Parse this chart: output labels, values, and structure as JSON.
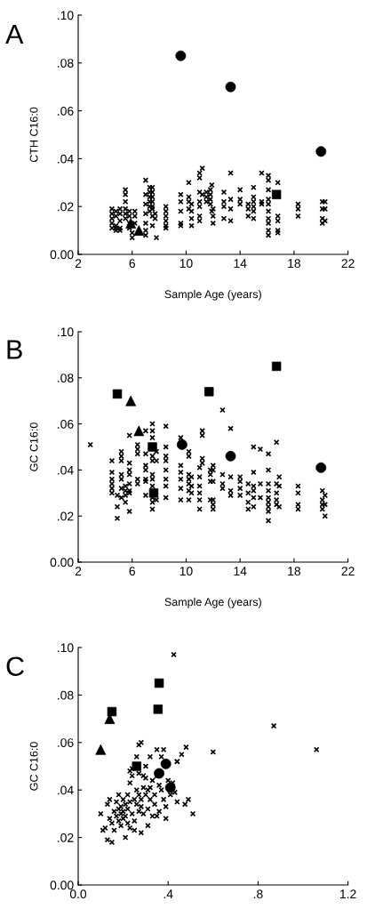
{
  "chart_data": [
    {
      "type": "scatter",
      "title": "A",
      "xlabel": "Sample Age (years)",
      "ylabel": "CTH C16:0",
      "xlim": [
        2,
        22
      ],
      "xticks": [
        2,
        6,
        10,
        14,
        18,
        22
      ],
      "ylim": [
        0,
        0.1
      ],
      "yticks": [
        {
          "value": 0,
          "label": "0.00"
        },
        {
          "value": 0.02,
          "label": ".02"
        },
        {
          "value": 0.04,
          "label": ".04"
        },
        {
          "value": 0.06,
          "label": ".06"
        },
        {
          "value": 0.08,
          "label": ".08"
        },
        {
          "value": 0.1,
          "label": ".10"
        }
      ],
      "grid": false,
      "legend": false,
      "series": [
        {
          "color": "#000000",
          "marker": "cross",
          "x": [
            4.5,
            4.5,
            4.5,
            4.5,
            4.5,
            4.8,
            4.8,
            4.8,
            4.8,
            4.8,
            5.1,
            5.1,
            5.1,
            5.1,
            5.1,
            5.5,
            5.5,
            5.5,
            5.5,
            5.5,
            5.5,
            5.8,
            5.8,
            5.8,
            5.8,
            6.0,
            6.0,
            6.2,
            6.2,
            6.2,
            7.0,
            7.0,
            7.0,
            7.0,
            7.0,
            7.0,
            7.0,
            7.3,
            7.3,
            7.3,
            7.3,
            7.3,
            7.3,
            7.5,
            7.5,
            7.5,
            7.5,
            7.5,
            7.5,
            7.5,
            7.5,
            7.7,
            7.7,
            7.8,
            8.5,
            8.5,
            8.5,
            8.5,
            8.5,
            8.5,
            9.6,
            9.6,
            9.6,
            9.6,
            9.6,
            10.2,
            10.2,
            10.2,
            10.2,
            10.4,
            10.4,
            10.4,
            10.4,
            11.0,
            11.0,
            11.0,
            11.0,
            11.0,
            11.0,
            11.0,
            11.2,
            11.2,
            11.5,
            11.5,
            11.5,
            11.8,
            11.8,
            11.8,
            11.8,
            11.9,
            11.9,
            12.0,
            12.0,
            12.0,
            12.8,
            12.8,
            12.8,
            12.8,
            13.3,
            13.3,
            13.3,
            13.3,
            14.0,
            14.0,
            14.0,
            14.6,
            14.6,
            14.6,
            15.0,
            15.0,
            15.0,
            15.0,
            15.0,
            15.0,
            15.6,
            15.6,
            15.6,
            16.1,
            16.1,
            16.1,
            16.1,
            16.1,
            16.1,
            16.1,
            16.1,
            16.1,
            16.1,
            16.8,
            16.8,
            16.8,
            16.8,
            16.8,
            18.3,
            18.3,
            18.3,
            20.1,
            20.1,
            20.1,
            20.1,
            20.3,
            20.3,
            20.3
          ],
          "values": [
            0.019,
            0.017,
            0.015,
            0.013,
            0.011,
            0.018,
            0.016,
            0.012,
            0.011,
            0.01,
            0.019,
            0.017,
            0.014,
            0.011,
            0.01,
            0.027,
            0.025,
            0.022,
            0.019,
            0.017,
            0.015,
            0.018,
            0.016,
            0.013,
            0.011,
            0.009,
            0.007,
            0.018,
            0.016,
            0.013,
            0.031,
            0.025,
            0.021,
            0.017,
            0.013,
            0.01,
            0.008,
            0.028,
            0.026,
            0.024,
            0.022,
            0.02,
            0.018,
            0.028,
            0.026,
            0.024,
            0.022,
            0.02,
            0.019,
            0.016,
            0.012,
            0.017,
            0.015,
            0.007,
            0.02,
            0.018,
            0.016,
            0.014,
            0.012,
            0.011,
            0.025,
            0.022,
            0.018,
            0.013,
            0.012,
            0.03,
            0.024,
            0.022,
            0.019,
            0.021,
            0.018,
            0.015,
            0.012,
            0.034,
            0.032,
            0.026,
            0.022,
            0.02,
            0.016,
            0.014,
            0.036,
            0.025,
            0.026,
            0.024,
            0.022,
            0.027,
            0.025,
            0.023,
            0.021,
            0.029,
            0.018,
            0.019,
            0.016,
            0.013,
            0.026,
            0.022,
            0.02,
            0.015,
            0.034,
            0.023,
            0.019,
            0.014,
            0.027,
            0.023,
            0.021,
            0.021,
            0.019,
            0.016,
            0.028,
            0.024,
            0.022,
            0.02,
            0.018,
            0.015,
            0.034,
            0.022,
            0.021,
            0.033,
            0.031,
            0.027,
            0.023,
            0.021,
            0.018,
            0.015,
            0.013,
            0.01,
            0.008,
            0.03,
            0.016,
            0.014,
            0.01,
            0.009,
            0.021,
            0.019,
            0.016,
            0.022,
            0.019,
            0.015,
            0.013,
            0.022,
            0.019,
            0.014
          ]
        },
        {
          "color": "#000000",
          "marker": "circle",
          "x": [
            9.6,
            13.3,
            20.0
          ],
          "values": [
            0.083,
            0.07,
            0.043
          ]
        },
        {
          "color": "#000000",
          "marker": "square",
          "x": [
            16.7
          ],
          "values": [
            0.025
          ]
        },
        {
          "color": "#000000",
          "marker": "triangle",
          "x": [
            5.9,
            6.5
          ],
          "values": [
            0.013,
            0.01
          ]
        }
      ]
    },
    {
      "type": "scatter",
      "title": "B",
      "xlabel": "Sample Age (years)",
      "ylabel": "GC C16:0",
      "xlim": [
        2,
        22
      ],
      "xticks": [
        2,
        6,
        10,
        14,
        18,
        22
      ],
      "ylim": [
        0,
        0.1
      ],
      "yticks": [
        {
          "value": 0,
          "label": "0.00"
        },
        {
          "value": 0.02,
          "label": ".02"
        },
        {
          "value": 0.04,
          "label": ".04"
        },
        {
          "value": 0.06,
          "label": ".06"
        },
        {
          "value": 0.08,
          "label": ".08"
        },
        {
          "value": 0.1,
          "label": ".10"
        }
      ],
      "grid": false,
      "legend": false,
      "series": [
        {
          "color": "#000000",
          "marker": "cross",
          "x": [
            2.9,
            4.5,
            4.5,
            4.5,
            4.5,
            4.5,
            4.5,
            4.9,
            4.9,
            4.9,
            5.2,
            5.2,
            5.2,
            5.2,
            5.2,
            5.2,
            5.2,
            5.5,
            5.5,
            5.5,
            5.5,
            5.8,
            5.8,
            5.8,
            5.8,
            5.8,
            5.8,
            5.8,
            5.8,
            6.4,
            6.4,
            6.4,
            6.4,
            6.4,
            7.0,
            7.0,
            7.0,
            7.0,
            7.0,
            7.0,
            7.0,
            7.5,
            7.5,
            7.5,
            7.5,
            7.5,
            7.5,
            7.5,
            7.5,
            7.5,
            7.5,
            7.5,
            7.8,
            7.8,
            7.8,
            8.5,
            8.5,
            8.5,
            8.5,
            8.5,
            8.5,
            8.5,
            8.5,
            9.6,
            9.6,
            9.6,
            9.6,
            9.6,
            9.6,
            10.2,
            10.2,
            10.2,
            10.2,
            10.2,
            10.2,
            10.2,
            10.4,
            10.4,
            10.4,
            11.0,
            11.0,
            11.0,
            11.0,
            11.0,
            11.0,
            11.2,
            11.2,
            11.2,
            11.2,
            11.8,
            11.8,
            11.8,
            11.8,
            12.0,
            12.0,
            12.0,
            12.0,
            12.0,
            12.0,
            12.7,
            12.7,
            12.7,
            12.7,
            13.3,
            13.3,
            13.3,
            13.3,
            14.0,
            14.0,
            14.0,
            14.0,
            14.6,
            14.6,
            14.6,
            14.6,
            15.0,
            15.0,
            15.0,
            15.0,
            15.0,
            15.0,
            15.5,
            15.5,
            15.5,
            16.1,
            16.1,
            16.1,
            16.1,
            16.1,
            16.1,
            16.1,
            16.1,
            16.1,
            16.7,
            16.7,
            16.7,
            16.7,
            16.7,
            16.9,
            16.9,
            16.9,
            18.3,
            18.3,
            18.3,
            18.3,
            20.1,
            20.1,
            20.1,
            20.1,
            20.3,
            20.3,
            20.3
          ],
          "values": [
            0.051,
            0.044,
            0.039,
            0.036,
            0.034,
            0.032,
            0.03,
            0.024,
            0.019,
            0.029,
            0.048,
            0.046,
            0.044,
            0.038,
            0.036,
            0.032,
            0.028,
            0.033,
            0.031,
            0.029,
            0.026,
            0.055,
            0.043,
            0.04,
            0.038,
            0.034,
            0.031,
            0.03,
            0.022,
            0.051,
            0.049,
            0.047,
            0.036,
            0.034,
            0.057,
            0.047,
            0.042,
            0.04,
            0.036,
            0.035,
            0.029,
            0.06,
            0.057,
            0.054,
            0.046,
            0.044,
            0.038,
            0.036,
            0.033,
            0.028,
            0.026,
            0.023,
            0.048,
            0.044,
            0.027,
            0.059,
            0.05,
            0.046,
            0.044,
            0.04,
            0.036,
            0.033,
            0.028,
            0.054,
            0.042,
            0.039,
            0.036,
            0.032,
            0.027,
            0.048,
            0.046,
            0.038,
            0.036,
            0.034,
            0.031,
            0.027,
            0.037,
            0.033,
            0.03,
            0.041,
            0.037,
            0.033,
            0.03,
            0.027,
            0.023,
            0.057,
            0.055,
            0.045,
            0.043,
            0.04,
            0.038,
            0.035,
            0.027,
            0.042,
            0.04,
            0.035,
            0.027,
            0.025,
            0.023,
            0.066,
            0.038,
            0.034,
            0.032,
            0.058,
            0.037,
            0.031,
            0.029,
            0.037,
            0.035,
            0.032,
            0.029,
            0.034,
            0.03,
            0.026,
            0.023,
            0.05,
            0.039,
            0.033,
            0.031,
            0.028,
            0.024,
            0.049,
            0.034,
            0.028,
            0.047,
            0.04,
            0.034,
            0.031,
            0.028,
            0.026,
            0.024,
            0.022,
            0.018,
            0.052,
            0.034,
            0.03,
            0.027,
            0.025,
            0.037,
            0.033,
            0.024,
            0.033,
            0.03,
            0.025,
            0.023,
            0.031,
            0.027,
            0.025,
            0.023,
            0.029,
            0.025,
            0.02
          ]
        },
        {
          "color": "#000000",
          "marker": "circle",
          "x": [
            9.7,
            13.3,
            20.0
          ],
          "values": [
            0.051,
            0.046,
            0.041
          ]
        },
        {
          "color": "#000000",
          "marker": "square",
          "x": [
            4.9,
            11.7,
            16.7,
            7.5,
            7.6
          ],
          "values": [
            0.073,
            0.074,
            0.085,
            0.05,
            0.03
          ]
        },
        {
          "color": "#000000",
          "marker": "triangle",
          "x": [
            5.9,
            6.5
          ],
          "values": [
            0.07,
            0.057
          ]
        }
      ]
    },
    {
      "type": "scatter",
      "title": "C",
      "ylabel": "GC C16:0",
      "xlim": [
        0,
        1.2
      ],
      "xticks": [
        {
          "value": 0,
          "label": "0.0"
        },
        {
          "value": 0.4,
          "label": ".4"
        },
        {
          "value": 0.8,
          "label": ".8"
        },
        {
          "value": 1.2,
          "label": "1.2"
        }
      ],
      "ylim": [
        0,
        0.1
      ],
      "yticks": [
        {
          "value": 0,
          "label": "0.00"
        },
        {
          "value": 0.02,
          "label": ".02"
        },
        {
          "value": 0.04,
          "label": ".04"
        },
        {
          "value": 0.06,
          "label": ".06"
        },
        {
          "value": 0.08,
          "label": ".08"
        },
        {
          "value": 0.1,
          "label": ".10"
        }
      ],
      "grid": false,
      "legend": false,
      "series": [
        {
          "color": "#000000",
          "marker": "cross",
          "x": [
            0.1,
            0.11,
            0.12,
            0.13,
            0.13,
            0.14,
            0.15,
            0.14,
            0.15,
            0.16,
            0.16,
            0.17,
            0.17,
            0.18,
            0.18,
            0.18,
            0.19,
            0.19,
            0.19,
            0.2,
            0.2,
            0.2,
            0.21,
            0.21,
            0.21,
            0.22,
            0.22,
            0.22,
            0.23,
            0.23,
            0.23,
            0.23,
            0.24,
            0.24,
            0.24,
            0.25,
            0.25,
            0.25,
            0.26,
            0.26,
            0.26,
            0.27,
            0.27,
            0.27,
            0.27,
            0.28,
            0.28,
            0.28,
            0.28,
            0.29,
            0.29,
            0.29,
            0.3,
            0.3,
            0.3,
            0.31,
            0.31,
            0.31,
            0.32,
            0.32,
            0.32,
            0.33,
            0.33,
            0.34,
            0.34,
            0.35,
            0.35,
            0.35,
            0.36,
            0.36,
            0.37,
            0.37,
            0.38,
            0.38,
            0.39,
            0.39,
            0.4,
            0.41,
            0.42,
            0.44,
            0.425,
            0.87,
            1.06,
            0.6,
            0.51,
            0.48,
            0.46,
            0.49,
            0.475,
            0.44,
            0.44,
            0.43
          ],
          "values": [
            0.03,
            0.023,
            0.024,
            0.034,
            0.019,
            0.036,
            0.018,
            0.028,
            0.026,
            0.031,
            0.023,
            0.029,
            0.035,
            0.032,
            0.027,
            0.038,
            0.03,
            0.033,
            0.025,
            0.028,
            0.036,
            0.031,
            0.02,
            0.034,
            0.029,
            0.026,
            0.038,
            0.032,
            0.024,
            0.043,
            0.048,
            0.035,
            0.03,
            0.046,
            0.049,
            0.036,
            0.027,
            0.023,
            0.04,
            0.034,
            0.054,
            0.059,
            0.047,
            0.038,
            0.031,
            0.06,
            0.036,
            0.033,
            0.022,
            0.046,
            0.041,
            0.03,
            0.05,
            0.045,
            0.038,
            0.04,
            0.032,
            0.025,
            0.054,
            0.041,
            0.036,
            0.044,
            0.029,
            0.038,
            0.034,
            0.057,
            0.046,
            0.029,
            0.042,
            0.031,
            0.054,
            0.04,
            0.057,
            0.036,
            0.033,
            0.028,
            0.044,
            0.038,
            0.043,
            0.052,
            0.097,
            0.067,
            0.057,
            0.056,
            0.03,
            0.058,
            0.055,
            0.036,
            0.034,
            0.035,
            0.052,
            0.039
          ]
        },
        {
          "color": "#000000",
          "marker": "circle",
          "x": [
            0.39,
            0.36,
            0.41
          ],
          "values": [
            0.051,
            0.047,
            0.041
          ]
        },
        {
          "color": "#000000",
          "marker": "square",
          "x": [
            0.36,
            0.355,
            0.15,
            0.26
          ],
          "values": [
            0.085,
            0.074,
            0.073,
            0.05
          ]
        },
        {
          "color": "#000000",
          "marker": "triangle",
          "x": [
            0.14,
            0.1
          ],
          "values": [
            0.07,
            0.057
          ]
        }
      ]
    }
  ]
}
